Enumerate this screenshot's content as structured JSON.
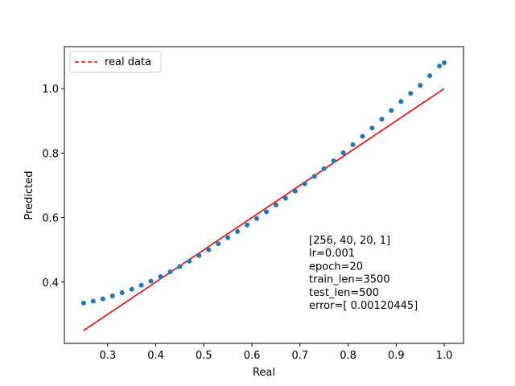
{
  "chart_data": {
    "type": "scatter",
    "xlabel": "Real",
    "ylabel": "Predicted",
    "xlim": [
      0.21,
      1.04
    ],
    "ylim": [
      0.21,
      1.13
    ],
    "xticks": [
      "0.3",
      "0.4",
      "0.5",
      "0.6",
      "0.7",
      "0.8",
      "0.9",
      "1.0"
    ],
    "yticks": [
      "0.4",
      "0.6",
      "0.8",
      "1.0"
    ],
    "grid": false,
    "legend_position": "top-left",
    "series": [
      {
        "name": "real data",
        "kind": "line",
        "style": "dashed",
        "color": "#ff0000",
        "x": [
          0.25,
          1.0
        ],
        "y": [
          0.25,
          1.0
        ]
      },
      {
        "kind": "scatter",
        "color": "#1f77b4",
        "x": [
          0.25,
          0.27,
          0.29,
          0.31,
          0.33,
          0.35,
          0.37,
          0.39,
          0.41,
          0.43,
          0.45,
          0.47,
          0.49,
          0.51,
          0.53,
          0.55,
          0.57,
          0.59,
          0.61,
          0.63,
          0.65,
          0.67,
          0.69,
          0.71,
          0.73,
          0.75,
          0.77,
          0.79,
          0.81,
          0.83,
          0.85,
          0.87,
          0.89,
          0.91,
          0.93,
          0.95,
          0.97,
          0.99,
          1.0
        ],
        "y": [
          0.335,
          0.341,
          0.348,
          0.357,
          0.367,
          0.378,
          0.39,
          0.403,
          0.417,
          0.432,
          0.448,
          0.465,
          0.482,
          0.5,
          0.519,
          0.538,
          0.557,
          0.577,
          0.597,
          0.618,
          0.639,
          0.66,
          0.682,
          0.705,
          0.728,
          0.752,
          0.776,
          0.801,
          0.826,
          0.852,
          0.878,
          0.905,
          0.932,
          0.96,
          0.985,
          1.01,
          1.04,
          1.07,
          1.08
        ]
      }
    ],
    "annotation_lines": [
      "[256, 40, 20, 1]",
      "lr=0.001",
      "epoch=20",
      "train_len=3500",
      "test_len=500",
      "error=[ 0.00120445]"
    ]
  }
}
